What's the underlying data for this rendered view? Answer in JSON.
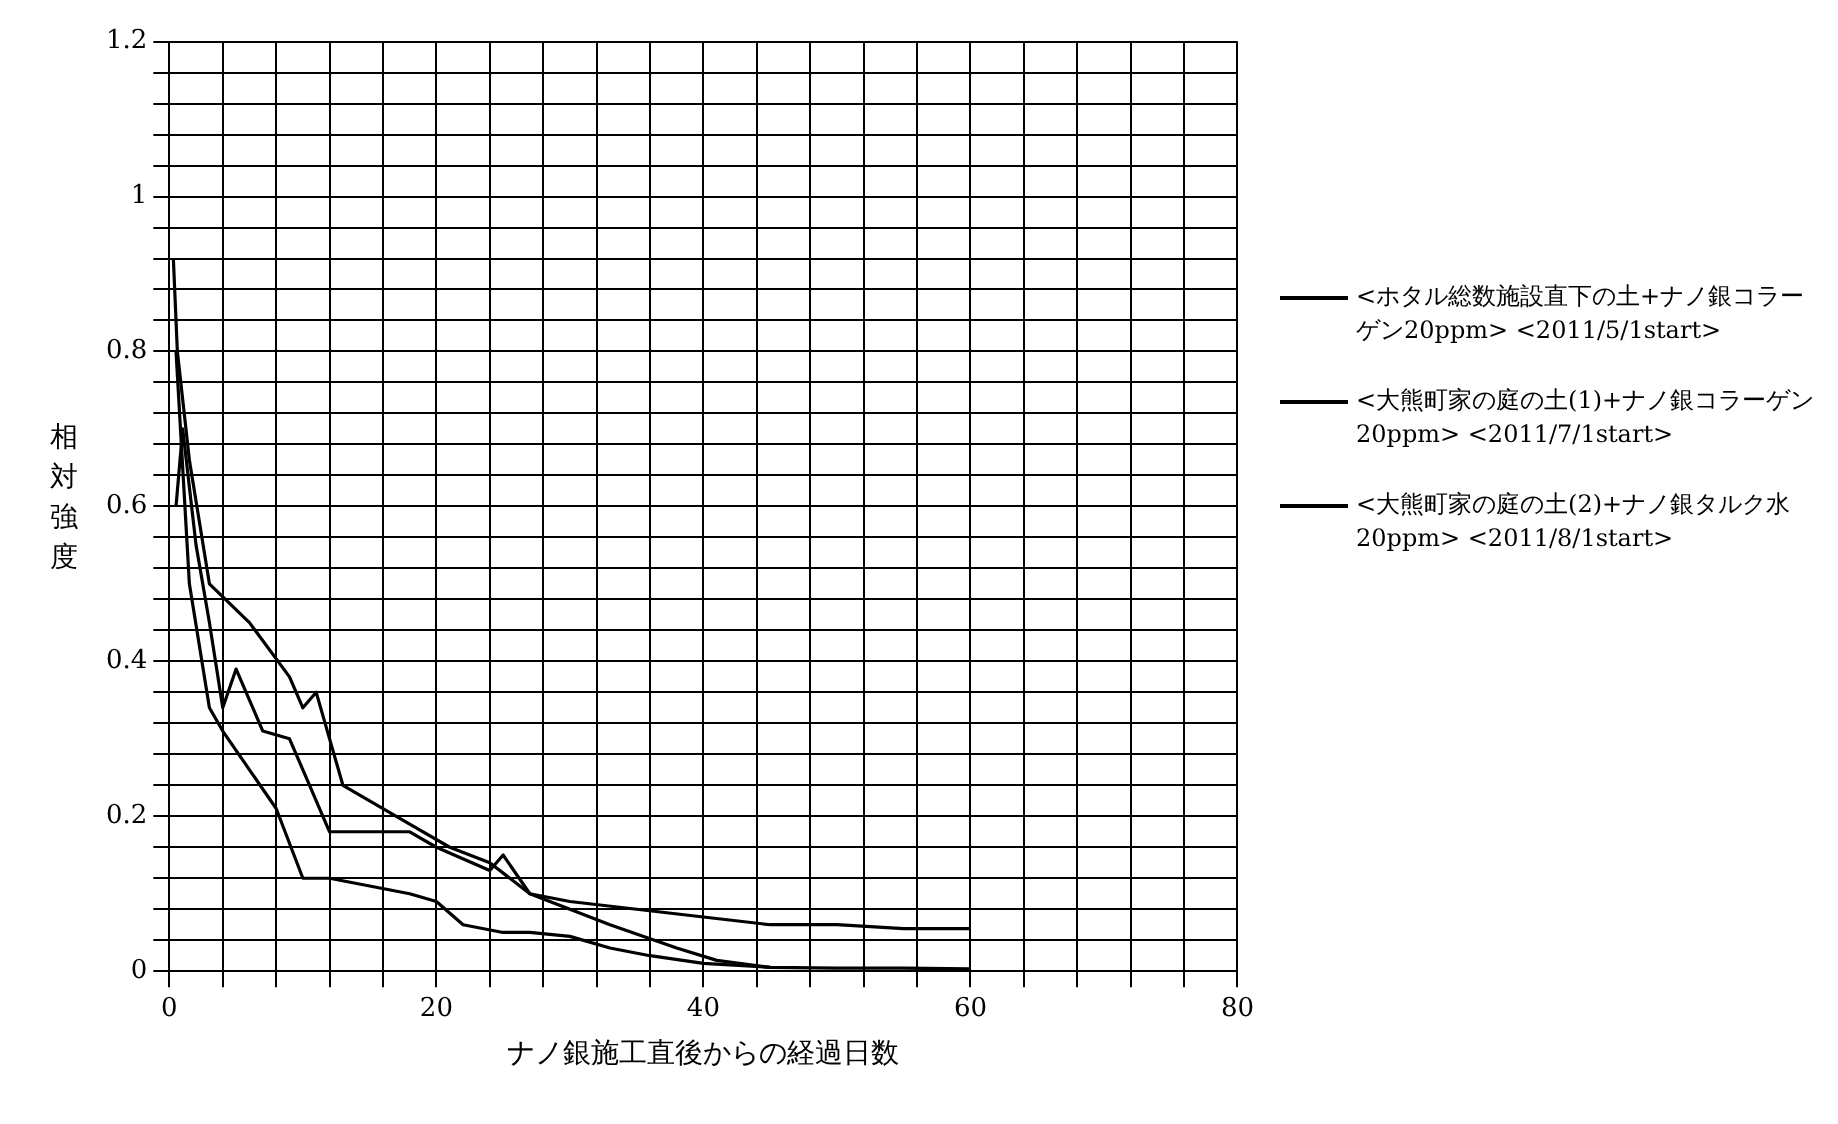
{
  "chart_data": {
    "type": "line",
    "xlabel": "ナノ銀施工直後からの経過日数",
    "ylabel": "相対強度",
    "xlim": [
      0,
      80
    ],
    "xticks": [
      0,
      {
        "value": 4,
        "label": null
      },
      {
        "value": 8,
        "label": null
      },
      {
        "value": 12,
        "label": null
      },
      {
        "value": 16,
        "label": null
      },
      20,
      {
        "value": 24,
        "label": null
      },
      {
        "value": 28,
        "label": null
      },
      {
        "value": 32,
        "label": null
      },
      {
        "value": 36,
        "label": null
      },
      40,
      {
        "value": 44,
        "label": null
      },
      {
        "value": 48,
        "label": null
      },
      {
        "value": 52,
        "label": null
      },
      {
        "value": 56,
        "label": null
      },
      60,
      {
        "value": 64,
        "label": null
      },
      {
        "value": 68,
        "label": null
      },
      {
        "value": 72,
        "label": null
      },
      {
        "value": 76,
        "label": null
      },
      80
    ],
    "ylim": [
      0,
      1.2
    ],
    "yticks": [
      0,
      {
        "value": 0.04,
        "label": null
      },
      {
        "value": 0.08,
        "label": null
      },
      {
        "value": 0.12,
        "label": null
      },
      {
        "value": 0.16,
        "label": null
      },
      0.2,
      {
        "value": 0.24,
        "label": null
      },
      {
        "value": 0.28,
        "label": null
      },
      {
        "value": 0.32,
        "label": null
      },
      {
        "value": 0.36,
        "label": null
      },
      0.4,
      {
        "value": 0.44,
        "label": null
      },
      {
        "value": 0.48,
        "label": null
      },
      {
        "value": 0.52,
        "label": null
      },
      {
        "value": 0.56,
        "label": null
      },
      0.6,
      {
        "value": 0.64,
        "label": null
      },
      {
        "value": 0.68,
        "label": null
      },
      {
        "value": 0.72,
        "label": null
      },
      {
        "value": 0.76,
        "label": null
      },
      0.8,
      {
        "value": 0.84,
        "label": null
      },
      {
        "value": 0.88,
        "label": null
      },
      {
        "value": 0.92,
        "label": null
      },
      {
        "value": 0.96,
        "label": null
      },
      1,
      {
        "value": 1.04,
        "label": null
      },
      {
        "value": 1.08,
        "label": null
      },
      {
        "value": 1.12,
        "label": null
      },
      {
        "value": 1.16,
        "label": null
      },
      1.2
    ],
    "grid": true,
    "legend": "right",
    "marker": "none",
    "line_style": "solid",
    "series": [
      {
        "name": "<ホタル総数施設直下の土+ナノ銀コラーゲン20ppm> <2011/5/1start>",
        "color": "#000000",
        "x": [
          0.3,
          0.6,
          1.5,
          3,
          6,
          9,
          10,
          11,
          13,
          15,
          18,
          21,
          24,
          27,
          30,
          35,
          40,
          45,
          50,
          55,
          60
        ],
        "values": [
          0.92,
          0.8,
          0.66,
          0.5,
          0.45,
          0.38,
          0.34,
          0.36,
          0.24,
          0.22,
          0.19,
          0.16,
          0.14,
          0.1,
          0.09,
          0.08,
          0.07,
          0.06,
          0.06,
          0.055,
          0.055
        ]
      },
      {
        "name": "<大熊町家の庭の土(1)+ナノ銀コラーゲン20ppm> <2011/7/1start>",
        "color": "#000000",
        "x": [
          0.5,
          1,
          2,
          3,
          4,
          5,
          7,
          9,
          12,
          15,
          18,
          20,
          24,
          25,
          27,
          30,
          33,
          38,
          41,
          45
        ],
        "values": [
          0.6,
          0.7,
          0.55,
          0.45,
          0.34,
          0.39,
          0.31,
          0.3,
          0.18,
          0.18,
          0.18,
          0.16,
          0.13,
          0.15,
          0.1,
          0.08,
          0.06,
          0.03,
          0.014,
          0.005
        ]
      },
      {
        "name": "<大熊町家の庭の土(2)+ナノ銀タルク水　20ppm> <2011/8/1start>",
        "color": "#000000",
        "x": [
          0.5,
          1.5,
          3,
          4,
          6,
          8,
          10,
          12,
          15,
          18,
          20,
          22,
          25,
          27,
          30,
          33,
          36,
          40,
          45,
          50,
          55,
          60
        ],
        "values": [
          0.8,
          0.5,
          0.34,
          0.31,
          0.26,
          0.21,
          0.12,
          0.12,
          0.11,
          0.1,
          0.09,
          0.06,
          0.05,
          0.05,
          0.045,
          0.03,
          0.02,
          0.01,
          0.005,
          0.004,
          0.004,
          0.003
        ]
      }
    ]
  }
}
